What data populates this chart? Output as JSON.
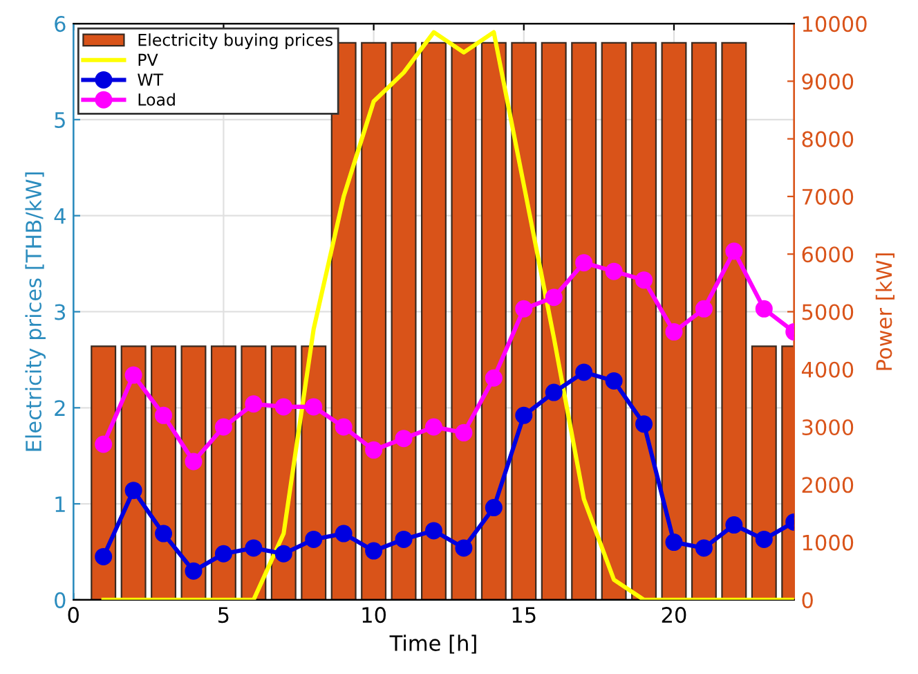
{
  "chart_data": {
    "type": "bar",
    "x": [
      1,
      2,
      3,
      4,
      5,
      6,
      7,
      8,
      9,
      10,
      11,
      12,
      13,
      14,
      15,
      16,
      17,
      18,
      19,
      20,
      21,
      22,
      23,
      24
    ],
    "xlabel": "Time [h]",
    "ylabel": "Electricity prices [THB/kW]",
    "y2label": "Power [kW]",
    "xlim": [
      0,
      24
    ],
    "xticks": [
      0,
      5,
      10,
      15,
      20
    ],
    "ylim": [
      0,
      6
    ],
    "yticks": [
      0,
      1,
      2,
      3,
      4,
      5,
      6
    ],
    "y2lim": [
      0,
      10000
    ],
    "y2ticks": [
      0,
      1000,
      2000,
      3000,
      4000,
      5000,
      6000,
      7000,
      8000,
      9000,
      10000
    ],
    "grid": true,
    "legend": "top left",
    "series": [
      {
        "name": "Electricity buying prices",
        "color": "#d95319",
        "values": [
          2.64,
          2.64,
          2.64,
          2.64,
          2.64,
          2.64,
          2.64,
          2.64,
          5.8,
          5.8,
          5.8,
          5.8,
          5.8,
          5.8,
          5.8,
          5.8,
          5.8,
          5.8,
          5.8,
          5.8,
          5.8,
          5.8,
          2.64,
          2.64
        ]
      },
      {
        "name": "PV",
        "type": "line",
        "axis": "y2",
        "color": "#ffff00",
        "marker": "none",
        "values": [
          0,
          0,
          0,
          0,
          0,
          0,
          1150,
          4700,
          7000,
          8650,
          9150,
          9850,
          9500,
          9850,
          7200,
          4550,
          1750,
          350,
          0,
          0,
          0,
          0,
          0,
          0
        ]
      },
      {
        "name": "WT",
        "type": "line",
        "axis": "y2",
        "color": "#0000e0",
        "marker": "circle",
        "values": [
          750,
          1900,
          1150,
          500,
          800,
          900,
          800,
          1050,
          1150,
          850,
          1050,
          1200,
          900,
          1600,
          3200,
          3600,
          3950,
          3800,
          3050,
          1000,
          900,
          1300,
          1050,
          1350
        ]
      },
      {
        "name": "Load",
        "type": "line",
        "axis": "y2",
        "color": "#ff00ff",
        "marker": "circle",
        "values": [
          2700,
          3900,
          3200,
          2400,
          3000,
          3400,
          3350,
          3350,
          3000,
          2600,
          2800,
          3000,
          2900,
          3850,
          5050,
          5250,
          5850,
          5700,
          5550,
          4650,
          5050,
          6050,
          5050,
          4650
        ]
      }
    ]
  }
}
